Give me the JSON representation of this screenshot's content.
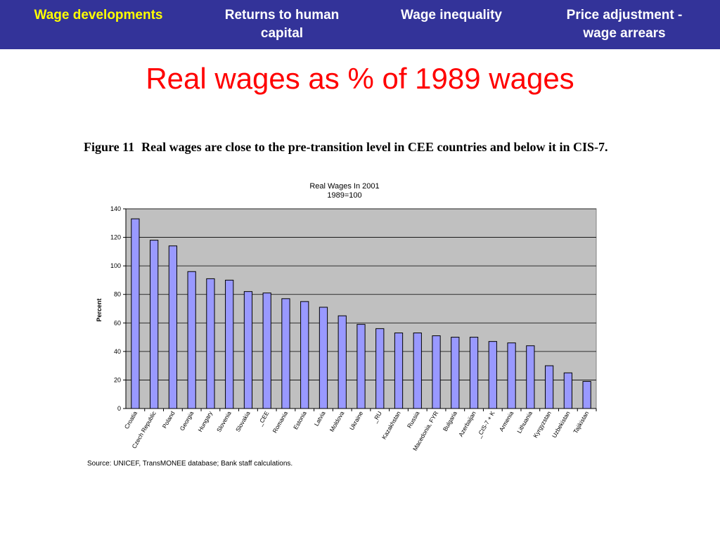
{
  "nav": {
    "items": [
      {
        "label_lines": [
          "Wage developments"
        ],
        "active": true
      },
      {
        "label_lines": [
          "Returns to human",
          "capital"
        ],
        "active": false
      },
      {
        "label_lines": [
          "Wage inequality"
        ],
        "active": false
      },
      {
        "label_lines": [
          "Price adjustment -",
          "wage arrears"
        ],
        "active": false
      }
    ],
    "background": "#333399",
    "active_color": "#ffff00",
    "text_color": "#ffffff"
  },
  "slide_title": "Real wages as % of 1989 wages",
  "figure": {
    "label": "Figure 11",
    "caption": "Real wages are close to the pre-transition level in CEE countries and below it in CIS-7."
  },
  "source": "Source: UNICEF, TransMONEE database; Bank staff calculations.",
  "chart_data": {
    "type": "bar",
    "title": "Real Wages In 2001",
    "subtitle": "1989=100",
    "xlabel": "",
    "ylabel": "Percent",
    "ylim": [
      0,
      140
    ],
    "yticks": [
      0,
      20,
      40,
      60,
      80,
      100,
      120,
      140
    ],
    "grid": true,
    "legend": "none",
    "bar_color": "#9999ff",
    "plot_background": "#c0c0c0",
    "categories": [
      "Croatia",
      "Czech Republic",
      "Poland",
      "Georgia",
      "Hungary",
      "Slovenia",
      "Slovakia",
      "_CEE",
      "Romania",
      "Estonia",
      "Latvia",
      "Moldova",
      "Ukraine",
      "_RU",
      "Kazakhstan",
      "Russia",
      "Macedonia, FYR",
      "Bulgaria",
      "Azerbaijan",
      "_CIS-7 + K",
      "Armenia",
      "Lithuania",
      "Kyrgyzstan",
      "Uzbekistan",
      "Tajikistan"
    ],
    "values": [
      133,
      118,
      114,
      96,
      91,
      90,
      82,
      81,
      77,
      75,
      71,
      65,
      59,
      56,
      53,
      53,
      51,
      50,
      50,
      47,
      46,
      44,
      30,
      25,
      19
    ]
  }
}
